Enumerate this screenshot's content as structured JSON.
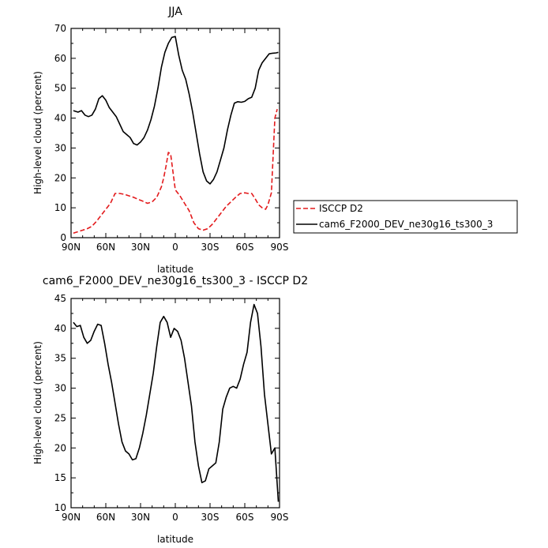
{
  "chart_data": [
    {
      "type": "line",
      "title": "JJA",
      "xlabel": "latitude",
      "ylabel": "High-level cloud (percent)",
      "xlim": [
        90,
        -90
      ],
      "ylim": [
        0,
        70
      ],
      "xticks": [
        90,
        60,
        30,
        0,
        -30,
        -60,
        -90
      ],
      "xtick_labels": [
        "90N",
        "60N",
        "30N",
        "0",
        "30S",
        "60S",
        "90S"
      ],
      "yticks": [
        0,
        10,
        20,
        30,
        40,
        50,
        60,
        70
      ],
      "ytick_labels": [
        "0",
        "10",
        "20",
        "30",
        "40",
        "50",
        "60",
        "70"
      ],
      "grid": false,
      "legend": "right",
      "series": [
        {
          "name": "ISCCP D2",
          "color": "#e31a1c",
          "dash": "dashed",
          "x": [
            88,
            84,
            80,
            76,
            72,
            68,
            64,
            60,
            56,
            52,
            48,
            44,
            40,
            36,
            32,
            28,
            24,
            20,
            16,
            12,
            10,
            8,
            6,
            4,
            0,
            -4,
            -8,
            -12,
            -16,
            -20,
            -24,
            -28,
            -32,
            -36,
            -40,
            -44,
            -48,
            -52,
            -56,
            -60,
            -63,
            -66,
            -69,
            -72,
            -75,
            -78,
            -80,
            -83,
            -86,
            -88
          ],
          "y": [
            1.5,
            2,
            2.5,
            3,
            3.8,
            5.5,
            7.5,
            9.5,
            11.5,
            14.8,
            14.8,
            14.5,
            14,
            13.5,
            12.8,
            12.2,
            11.5,
            12,
            13.5,
            17,
            20,
            24,
            28.5,
            28,
            16,
            14,
            11.5,
            9,
            5,
            3,
            2.5,
            3,
            4.5,
            6.5,
            8.5,
            10.5,
            12,
            13.5,
            14.8,
            15,
            14.8,
            14.8,
            13,
            11,
            10,
            9.5,
            11,
            15,
            40,
            43
          ]
        },
        {
          "name": "cam6_F2000_DEV_ne30g16_ts300_3",
          "color": "#000000",
          "dash": "solid",
          "x": [
            88,
            84,
            81,
            78,
            75,
            72,
            69,
            66,
            63,
            60,
            57,
            54,
            51,
            48,
            45,
            42,
            39,
            36,
            33,
            30,
            27,
            24,
            21,
            18,
            15,
            12,
            9,
            6,
            3,
            0,
            -3,
            -6,
            -9,
            -12,
            -15,
            -18,
            -21,
            -24,
            -27,
            -30,
            -33,
            -36,
            -39,
            -42,
            -45,
            -48,
            -51,
            -54,
            -57,
            -60,
            -63,
            -66,
            -69,
            -72,
            -75,
            -78,
            -81,
            -84,
            -87,
            -89
          ],
          "y": [
            42.5,
            42,
            42.5,
            41,
            40.5,
            41,
            43,
            46.5,
            47.5,
            46,
            43.5,
            42,
            40.5,
            38,
            35.5,
            34.5,
            33.5,
            31.5,
            31,
            32,
            33.5,
            36,
            39.5,
            44,
            50,
            57,
            62,
            65,
            67,
            67.3,
            61,
            56,
            53,
            48,
            42,
            35,
            28,
            22,
            19,
            18,
            19.5,
            22,
            26,
            30,
            36,
            41,
            45,
            45.5,
            45.3,
            45.6,
            46.5,
            47,
            50,
            56,
            58.5,
            60,
            61.5,
            61.7,
            61.8,
            62
          ]
        }
      ]
    },
    {
      "type": "line",
      "title": "cam6_F2000_DEV_ne30g16_ts300_3 - ISCCP D2",
      "xlabel": "latitude",
      "ylabel": "High-level cloud (percent)",
      "xlim": [
        90,
        -90
      ],
      "ylim": [
        10,
        45
      ],
      "xticks": [
        90,
        60,
        30,
        0,
        -30,
        -60,
        -90
      ],
      "xtick_labels": [
        "90N",
        "60N",
        "30N",
        "0",
        "30S",
        "60S",
        "90S"
      ],
      "yticks": [
        10,
        15,
        20,
        25,
        30,
        35,
        40,
        45
      ],
      "ytick_labels": [
        "10",
        "15",
        "20",
        "25",
        "30",
        "35",
        "40",
        "45"
      ],
      "grid": false,
      "series": [
        {
          "color": "#000000",
          "dash": "solid",
          "x": [
            88,
            85,
            82,
            79,
            76,
            73,
            70,
            67,
            64,
            61,
            58,
            55,
            52,
            49,
            46,
            43,
            40,
            37,
            34,
            31,
            28,
            25,
            22,
            19,
            16,
            13,
            10,
            7,
            4,
            1,
            -2,
            -5,
            -8,
            -11,
            -14,
            -17,
            -20,
            -23,
            -26,
            -29,
            -32,
            -35,
            -38,
            -41,
            -44,
            -47,
            -50,
            -53,
            -56,
            -59,
            -62,
            -65,
            -68,
            -71,
            -74,
            -77,
            -80,
            -83,
            -86,
            -89
          ],
          "y": [
            41,
            40.3,
            40.5,
            38.5,
            37.5,
            38,
            39.5,
            40.7,
            40.5,
            37.5,
            34,
            31,
            27.5,
            24,
            21,
            19.5,
            19,
            18,
            18.2,
            20,
            22.5,
            25.5,
            29,
            32.5,
            37,
            41,
            42,
            41,
            38.5,
            40,
            39.5,
            38,
            35,
            31,
            27,
            21,
            17,
            14.2,
            14.5,
            16.5,
            17,
            17.5,
            21,
            26.5,
            28.5,
            30,
            30.3,
            30,
            31.5,
            34,
            36,
            41,
            44,
            42.5,
            37,
            29,
            24,
            19,
            20,
            11
          ]
        }
      ]
    }
  ]
}
